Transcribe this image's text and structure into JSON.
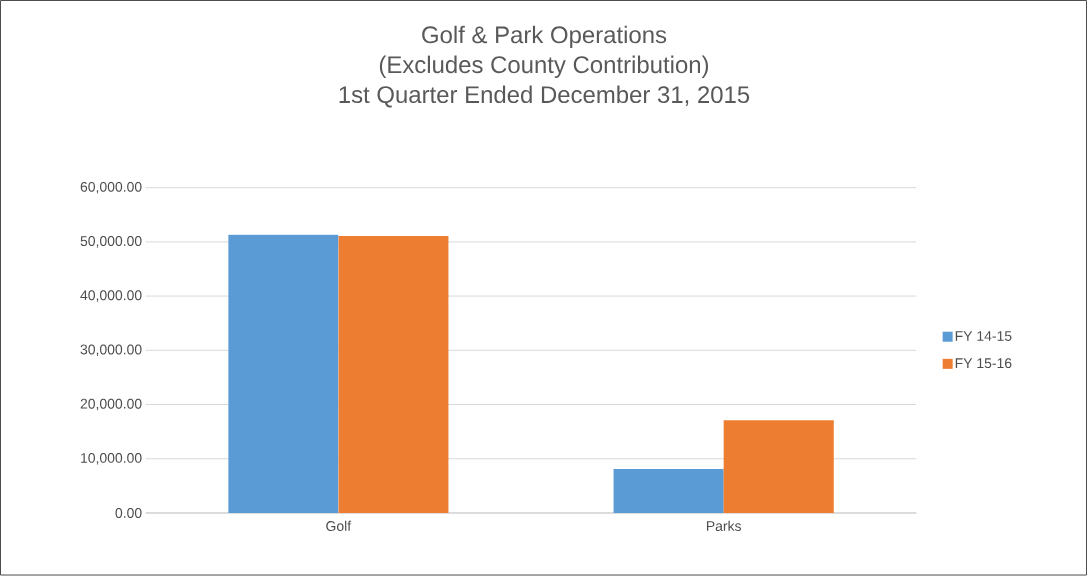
{
  "chart_data": {
    "type": "bar",
    "title": "Golf & Park Operations\n(Excludes County Contribution)\n1st Quarter Ended December 31, 2015",
    "categories": [
      "Golf",
      "Parks"
    ],
    "series": [
      {
        "name": "FY 14-15",
        "color": "#5b9bd5",
        "values": [
          51300,
          8100
        ]
      },
      {
        "name": "FY 15-16",
        "color": "#ed7d31",
        "values": [
          51100,
          17100
        ]
      }
    ],
    "ylim": [
      0,
      60000
    ],
    "yticks": [
      {
        "value": 0,
        "label": "0.00"
      },
      {
        "value": 10000,
        "label": "10,000.00"
      },
      {
        "value": 20000,
        "label": "20,000.00"
      },
      {
        "value": 30000,
        "label": "30,000.00"
      },
      {
        "value": 40000,
        "label": "40,000.00"
      },
      {
        "value": 50000,
        "label": "50,000.00"
      },
      {
        "value": 60000,
        "label": "60,000.00"
      }
    ],
    "grid": "y",
    "legend": "right"
  }
}
